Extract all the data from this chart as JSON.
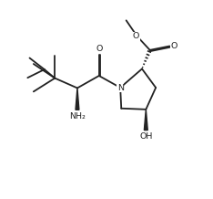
{
  "bg": "#ffffff",
  "lc": "#222222",
  "lw": 1.3,
  "fs": 6.8,
  "figw": 2.34,
  "figh": 2.18,
  "dpi": 100,
  "xlim": [
    0,
    10
  ],
  "ylim": [
    0,
    10
  ]
}
